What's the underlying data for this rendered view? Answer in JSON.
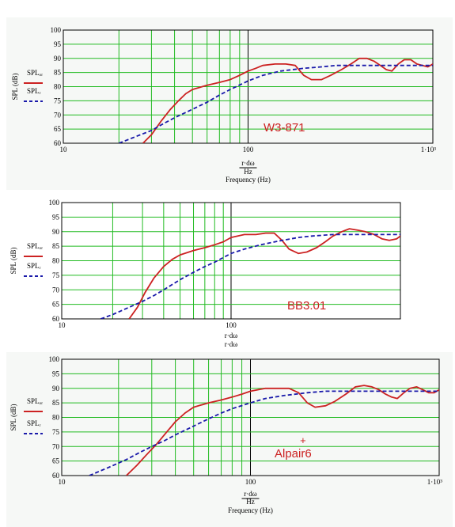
{
  "chart_data": [
    {
      "type": "line",
      "annotation": "W3-871",
      "ylabel": "SPL (dB)",
      "xlabel_lines": [
        "r·dω",
        "Hz",
        "Frequency (Hz)"
      ],
      "x_scale": "log",
      "xlim": [
        10,
        1000
      ],
      "ylim": [
        60,
        100
      ],
      "yticks": [
        "100",
        "95",
        "90",
        "85",
        "80",
        "75",
        "70",
        "65",
        "60"
      ],
      "xticks": [
        "10",
        "100",
        "1·10³"
      ],
      "grid": true,
      "legend_placement": "left",
      "legend": [
        {
          "name": "SPLₒᵣ",
          "color": "#cc2222",
          "style": "solid"
        },
        {
          "name": "SPLᵣ",
          "color": "#1a1aaa",
          "style": "dashed"
        }
      ],
      "series": [
        {
          "name": "SPLₒᵣ",
          "color": "#cc2222",
          "style": "solid",
          "x": [
            27,
            30,
            34,
            38,
            42,
            46,
            50,
            60,
            70,
            80,
            90,
            100,
            110,
            120,
            140,
            160,
            180,
            200,
            220,
            250,
            280,
            320,
            360,
            400,
            440,
            480,
            520,
            560,
            600,
            650,
            700,
            760,
            820,
            880,
            940,
            1000
          ],
          "y": [
            60,
            63,
            68,
            72,
            75,
            77.5,
            79,
            80.5,
            81.5,
            82.5,
            84,
            85.5,
            86.5,
            87.5,
            88,
            88,
            87.5,
            84,
            82.5,
            82.5,
            84,
            86,
            88,
            90,
            90,
            89,
            87.5,
            86,
            85.5,
            88,
            89.5,
            89.5,
            88,
            87.5,
            87,
            88
          ]
        },
        {
          "name": "SPLᵣ",
          "color": "#1a1aaa",
          "style": "dashed",
          "x": [
            20,
            25,
            30,
            35,
            40,
            50,
            60,
            70,
            80,
            100,
            120,
            150,
            200,
            250,
            300,
            400,
            500,
            600,
            800,
            1000
          ],
          "y": [
            60,
            62.5,
            64.5,
            67,
            69,
            72,
            74.5,
            77,
            79,
            82,
            84,
            85.5,
            86.5,
            87,
            87.5,
            87.5,
            87.5,
            87.5,
            87.5,
            87.5
          ]
        }
      ]
    },
    {
      "type": "line",
      "annotation": "BB3.01",
      "ylabel": "SPL (dB)",
      "xlabel_lines": [
        "r·dω",
        "r·dω"
      ],
      "x_scale": "log",
      "xlim": [
        10,
        1000
      ],
      "ylim": [
        60,
        100
      ],
      "yticks": [
        "100",
        "95",
        "90",
        "85",
        "80",
        "75",
        "70",
        "65",
        "60"
      ],
      "xticks": [
        "10",
        "100",
        ""
      ],
      "grid": true,
      "legend_placement": "left",
      "legend": [
        {
          "name": "SPLₒᵣ",
          "color": "#cc2222",
          "style": "solid"
        },
        {
          "name": "SPLᵣ",
          "color": "#1a1aaa",
          "style": "dashed"
        }
      ],
      "series": [
        {
          "name": "SPLₒᵣ",
          "color": "#cc2222",
          "style": "solid",
          "x": [
            25,
            28,
            31,
            35,
            40,
            45,
            50,
            60,
            70,
            80,
            90,
            100,
            120,
            140,
            160,
            180,
            200,
            220,
            250,
            280,
            320,
            360,
            400,
            450,
            500,
            560,
            620,
            700,
            780,
            860,
            950,
            1000
          ],
          "y": [
            60,
            64,
            69,
            74,
            78,
            80.5,
            82,
            83.5,
            84.5,
            85.5,
            86.5,
            88,
            89,
            89,
            89.5,
            89.5,
            87,
            84,
            82.5,
            83,
            84.5,
            86.5,
            88.5,
            90,
            91,
            90.5,
            90,
            89,
            87.5,
            87,
            87.5,
            88.5
          ]
        },
        {
          "name": "SPLᵣ",
          "color": "#1a1aaa",
          "style": "dashed",
          "x": [
            17,
            20,
            25,
            30,
            35,
            40,
            50,
            60,
            70,
            80,
            100,
            120,
            150,
            200,
            250,
            300,
            400,
            500,
            600,
            800,
            1000
          ],
          "y": [
            60,
            61.5,
            64,
            66,
            68,
            70,
            73.5,
            76,
            78,
            79.5,
            82.5,
            84,
            85.5,
            87,
            88,
            88.5,
            89,
            89,
            89,
            89,
            89
          ]
        }
      ]
    },
    {
      "type": "line",
      "annotation": "Alpair6",
      "ylabel": "SPL (dB)",
      "xlabel_lines": [
        "r·dω",
        "Hz",
        "Frequency (Hz)"
      ],
      "x_scale": "log",
      "xlim": [
        10,
        1000
      ],
      "ylim": [
        60,
        100
      ],
      "yticks": [
        "100",
        "95",
        "90",
        "85",
        "80",
        "75",
        "70",
        "65",
        "60"
      ],
      "xticks": [
        "10",
        "100",
        "1·10³"
      ],
      "grid": true,
      "legend_placement": "left",
      "marker": {
        "label": "+",
        "x": 190,
        "y": 72
      },
      "legend": [
        {
          "name": "SPLₒᵣ",
          "color": "#cc2222",
          "style": "solid"
        },
        {
          "name": "SPLᵣ",
          "color": "#1a1aaa",
          "style": "dashed"
        }
      ],
      "series": [
        {
          "name": "SPLₒᵣ",
          "color": "#cc2222",
          "style": "solid",
          "x": [
            22,
            25,
            28,
            32,
            36,
            40,
            45,
            50,
            60,
            70,
            80,
            90,
            100,
            120,
            140,
            160,
            180,
            200,
            220,
            250,
            280,
            320,
            360,
            400,
            440,
            480,
            520,
            560,
            600,
            650,
            700,
            760,
            820,
            880,
            940,
            1000
          ],
          "y": [
            60,
            63.5,
            67,
            71,
            75,
            78.5,
            81.5,
            83.5,
            85,
            86,
            87,
            88,
            89,
            90,
            90,
            90,
            88.5,
            85,
            83.5,
            84,
            85.5,
            88,
            90.5,
            91,
            90.5,
            89.5,
            88,
            87,
            86.5,
            88.5,
            90,
            90.5,
            89.5,
            88.5,
            88.5,
            89.5
          ]
        },
        {
          "name": "SPLᵣ",
          "color": "#1a1aaa",
          "style": "dashed",
          "x": [
            14,
            18,
            22,
            26,
            30,
            35,
            40,
            50,
            60,
            70,
            80,
            100,
            120,
            150,
            200,
            250,
            300,
            400,
            500,
            600,
            800,
            1000
          ],
          "y": [
            60,
            63,
            65.5,
            68,
            70,
            72,
            74,
            77,
            79.5,
            81.5,
            83,
            85,
            86.5,
            87.5,
            88.5,
            89,
            89,
            89,
            89,
            89,
            89,
            89
          ]
        }
      ]
    }
  ]
}
